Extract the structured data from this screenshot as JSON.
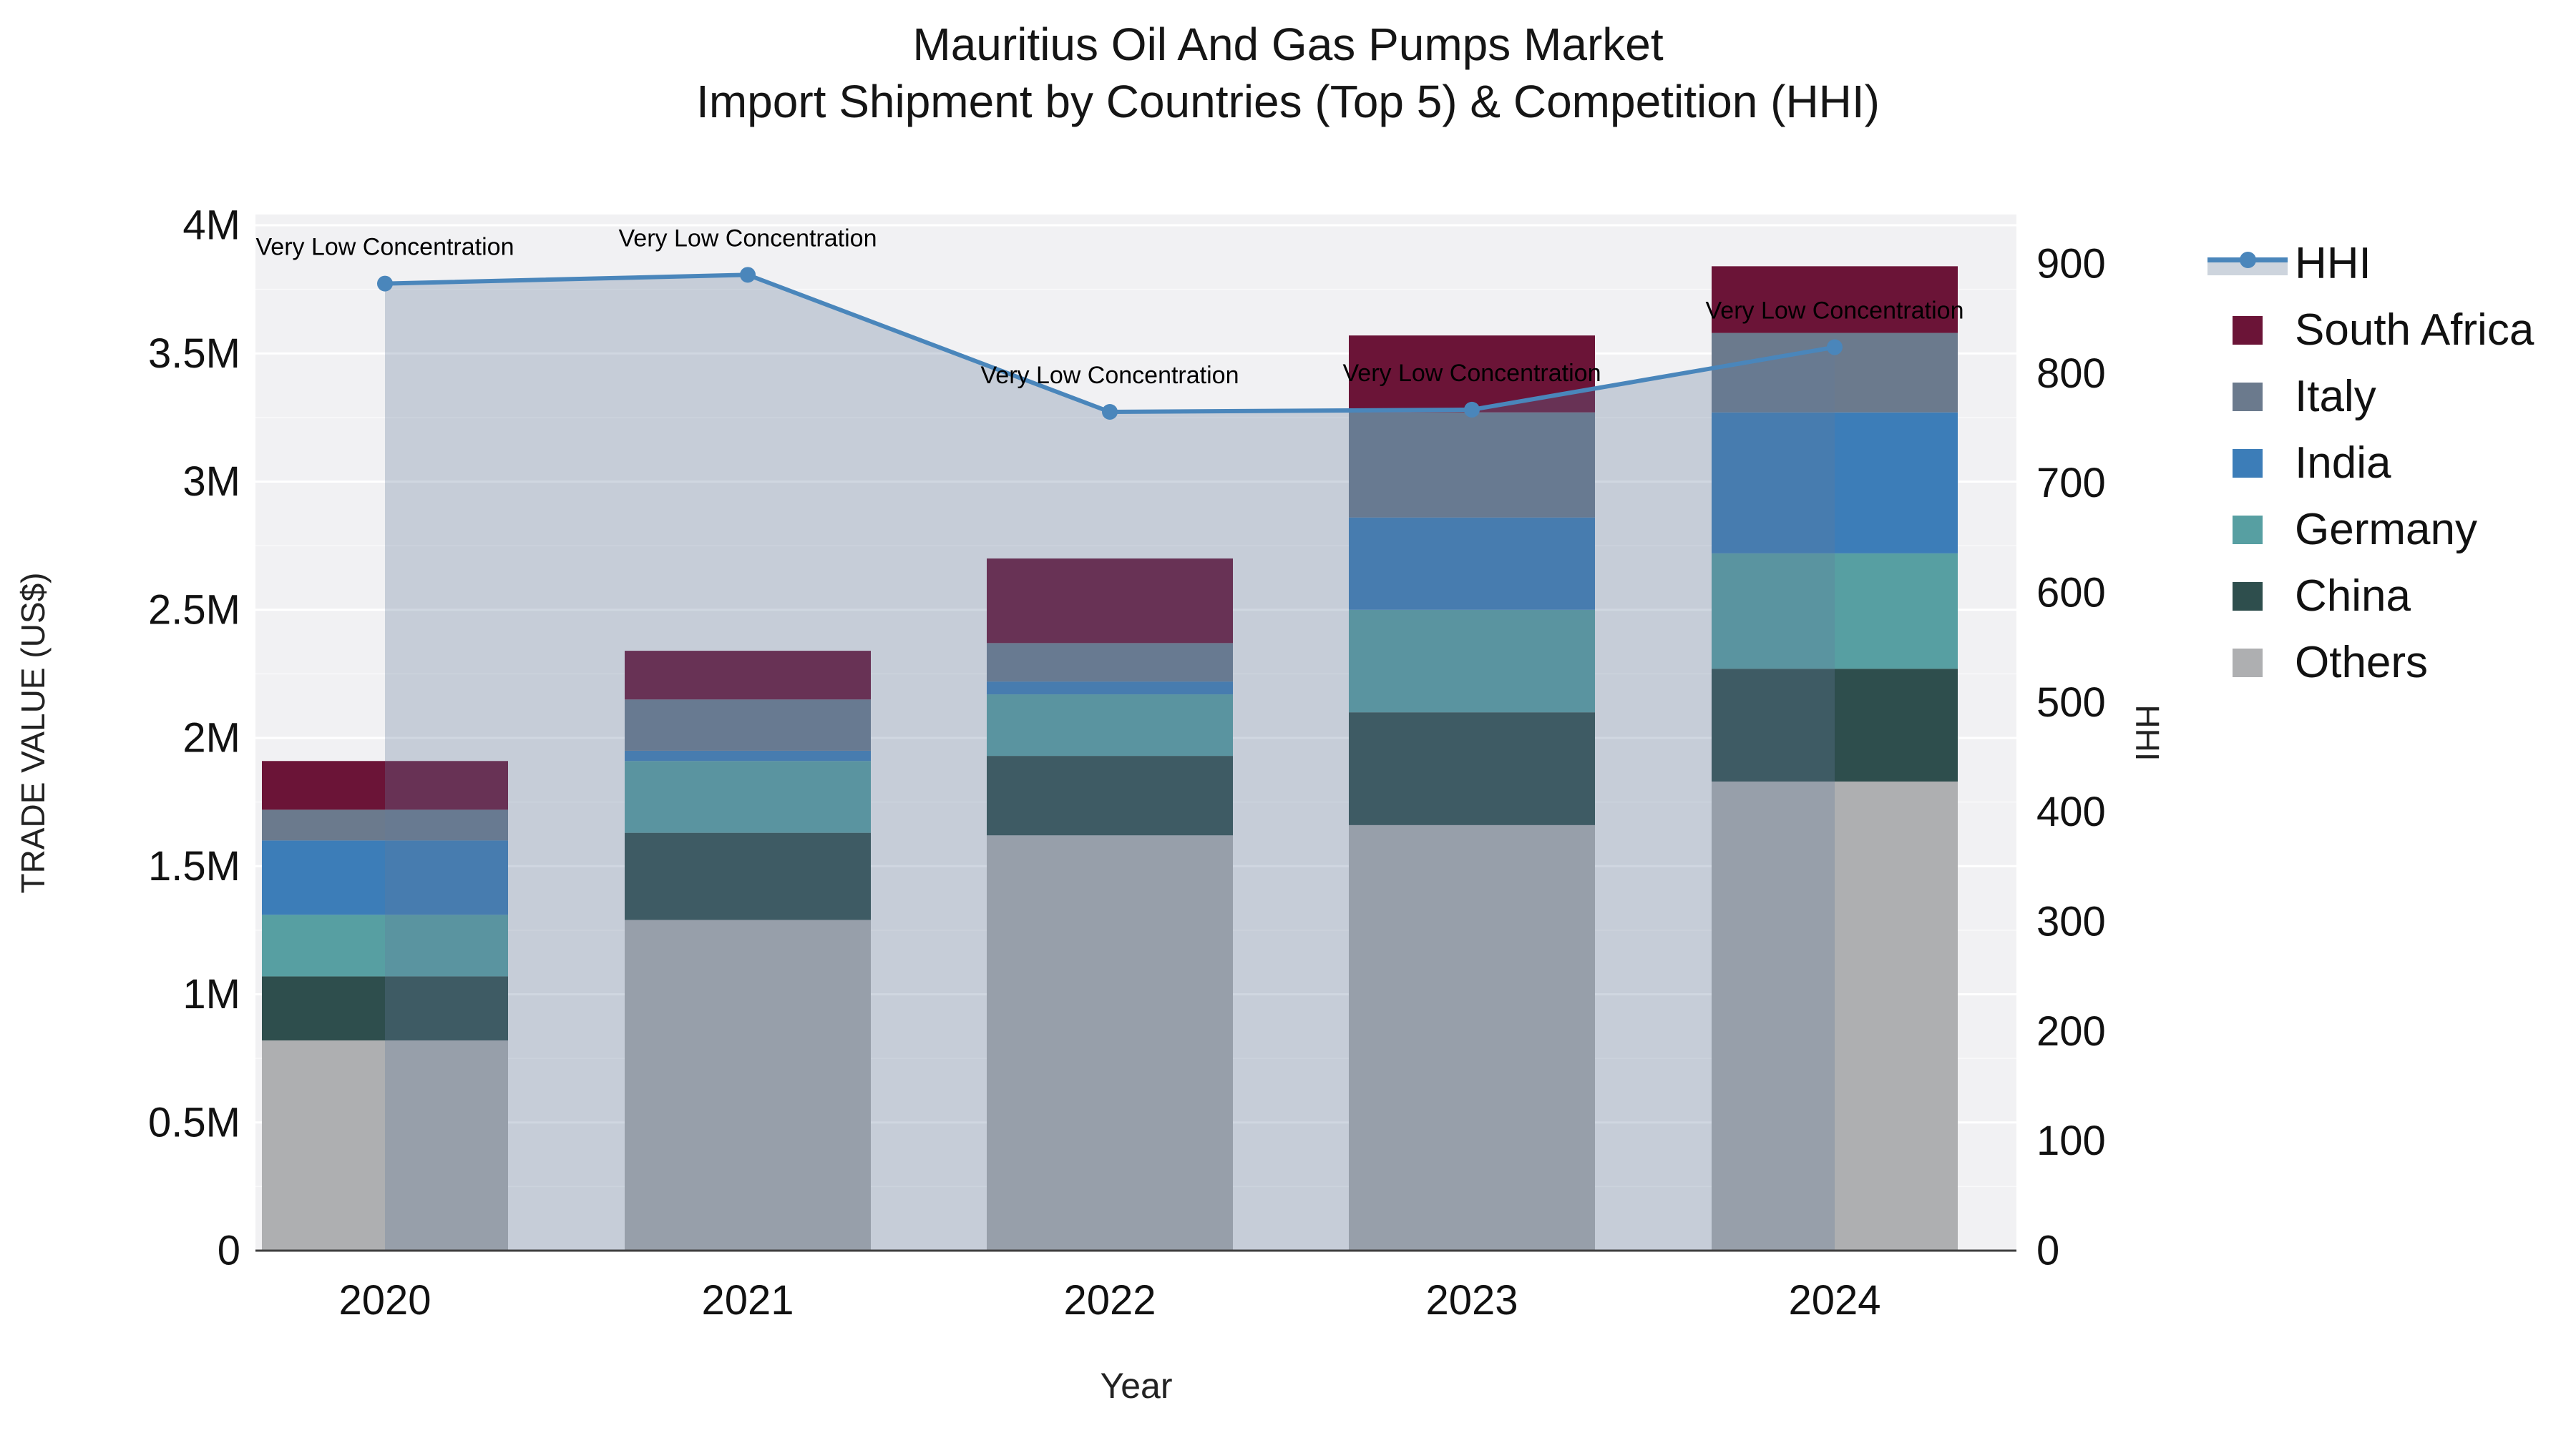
{
  "title": {
    "line1": "Mauritius Oil And Gas Pumps Market",
    "line2": "Import Shipment by Countries (Top 5) & Competition (HHI)"
  },
  "chart_data": {
    "type": "combo-stacked-bar-line",
    "x": [
      "2020",
      "2021",
      "2022",
      "2023",
      "2024"
    ],
    "xlabel": "Year",
    "left_axis": {
      "label": "TRADE VALUE (US$)",
      "tick_labels": [
        "0",
        "0.5M",
        "1M",
        "1.5M",
        "2M",
        "2.5M",
        "3M",
        "3.5M",
        "4M"
      ],
      "tick_values_musd": [
        0,
        0.5,
        1,
        1.5,
        2,
        2.5,
        3,
        3.5,
        4
      ],
      "range_musd": [
        0,
        4
      ],
      "minor_grid_step_musd": 0.25
    },
    "right_axis": {
      "label": "HHI",
      "tick_labels": [
        "0",
        "100",
        "200",
        "300",
        "400",
        "500",
        "600",
        "700",
        "800",
        "900"
      ],
      "tick_values": [
        0,
        100,
        200,
        300,
        400,
        500,
        600,
        700,
        800,
        900
      ],
      "range": [
        0,
        900
      ]
    },
    "bar_series_bottom_to_top": [
      {
        "name": "Others",
        "color": "#AEAFB1",
        "values_musd": [
          0.82,
          1.29,
          1.62,
          1.66,
          1.83
        ]
      },
      {
        "name": "China",
        "color": "#2E4E4D",
        "values_musd": [
          0.25,
          0.34,
          0.31,
          0.44,
          0.44
        ]
      },
      {
        "name": "Germany",
        "color": "#579FA2",
        "values_musd": [
          0.24,
          0.28,
          0.24,
          0.4,
          0.45
        ]
      },
      {
        "name": "India",
        "color": "#3C7DB8",
        "values_musd": [
          0.29,
          0.04,
          0.05,
          0.36,
          0.55
        ]
      },
      {
        "name": "Italy",
        "color": "#6B7A8D",
        "values_musd": [
          0.12,
          0.2,
          0.15,
          0.41,
          0.31
        ]
      },
      {
        "name": "South Africa",
        "color": "#6B1437",
        "values_musd": [
          0.19,
          0.19,
          0.33,
          0.3,
          0.26
        ]
      }
    ],
    "bar_totals_musd": [
      1.91,
      2.34,
      2.7,
      3.57,
      3.84
    ],
    "line_series": {
      "name": "HHI",
      "color": "#4A86BB",
      "area_fill": "rgba(99,123,156,0.30)",
      "values": [
        882,
        890,
        765,
        767,
        824
      ]
    },
    "annotations": [
      {
        "x": "2020",
        "text": "Very Low Concentration"
      },
      {
        "x": "2021",
        "text": "Very Low Concentration"
      },
      {
        "x": "2022",
        "text": "Very Low Concentration"
      },
      {
        "x": "2023",
        "text": "Very Low Concentration"
      },
      {
        "x": "2024",
        "text": "Very Low Concentration"
      }
    ],
    "grid": "on",
    "legend_position": "right",
    "plot_bg_color": "#F1F1F3",
    "grid_color": "#FFFFFF",
    "axis_line_color": "#3F3F3F"
  },
  "legend": {
    "items": [
      {
        "label": "HHI",
        "type": "line",
        "color": "#4A86BB"
      },
      {
        "label": "South Africa",
        "type": "swatch",
        "color": "#6B1437"
      },
      {
        "label": "Italy",
        "type": "swatch",
        "color": "#6B7A8D"
      },
      {
        "label": "India",
        "type": "swatch",
        "color": "#3C7DB8"
      },
      {
        "label": "Germany",
        "type": "swatch",
        "color": "#579FA2"
      },
      {
        "label": "China",
        "type": "swatch",
        "color": "#2E4E4D"
      },
      {
        "label": "Others",
        "type": "swatch",
        "color": "#AEAFB1"
      }
    ]
  }
}
